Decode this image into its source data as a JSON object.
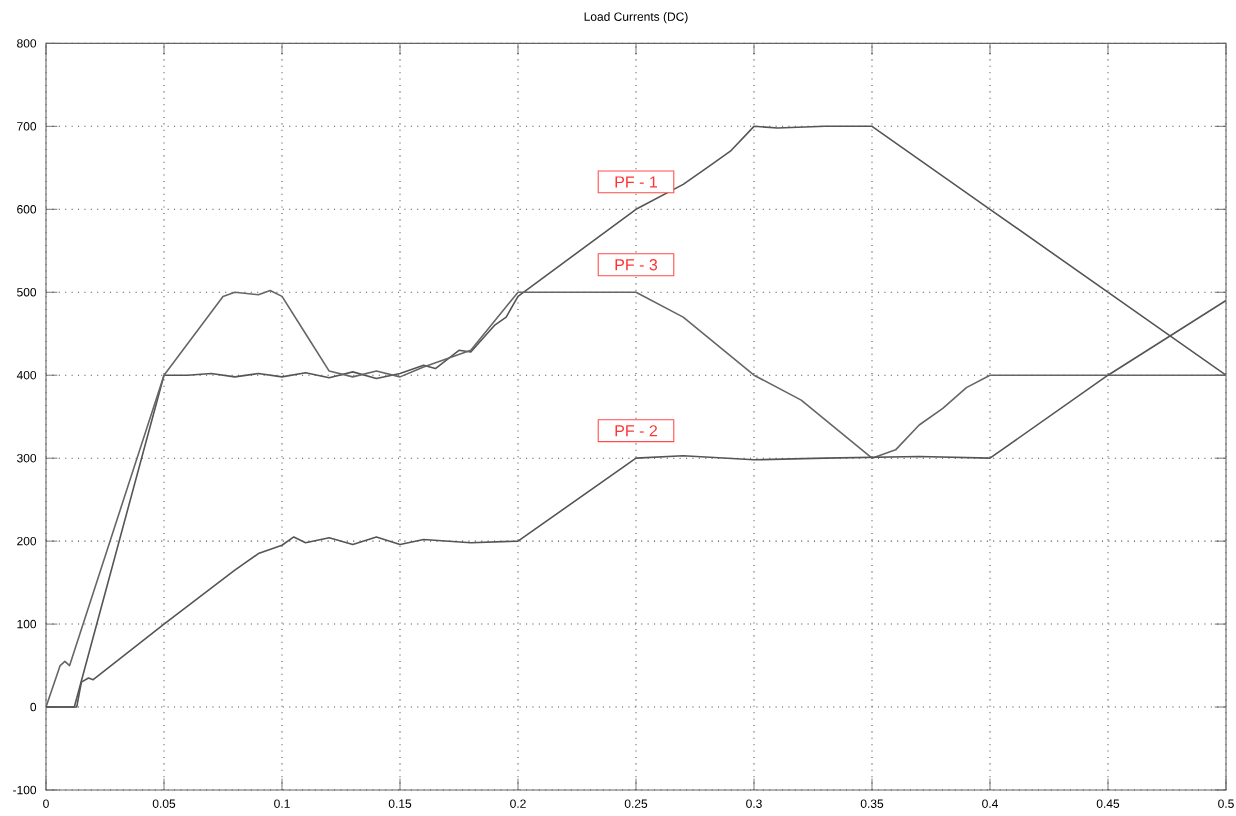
{
  "chart_data": {
    "type": "line",
    "title": "Load Currents (DC)",
    "xlim": [
      0,
      0.5
    ],
    "ylim": [
      -100,
      800
    ],
    "xticks": [
      0,
      0.05,
      0.1,
      0.15,
      0.2,
      0.25,
      0.3,
      0.35,
      0.4,
      0.45,
      0.5
    ],
    "yticks": [
      -100,
      0,
      100,
      200,
      300,
      400,
      500,
      600,
      700,
      800
    ],
    "grid": true,
    "marker": "none",
    "line_style": "solid",
    "series": [
      {
        "name": "PF - 1",
        "color": "#555555",
        "x": [
          0,
          0.012,
          0.05,
          0.06,
          0.07,
          0.08,
          0.09,
          0.1,
          0.11,
          0.12,
          0.13,
          0.14,
          0.15,
          0.16,
          0.165,
          0.175,
          0.18,
          0.19,
          0.195,
          0.2,
          0.25,
          0.27,
          0.28,
          0.29,
          0.3,
          0.31,
          0.33,
          0.35,
          0.36,
          0.38,
          0.4,
          0.45,
          0.5
        ],
        "values": [
          0,
          0,
          400,
          400,
          402,
          398,
          402,
          398,
          403,
          397,
          404,
          396,
          402,
          412,
          408,
          430,
          428,
          460,
          470,
          495,
          600,
          630,
          650,
          670,
          700,
          698,
          700,
          700,
          680,
          640,
          600,
          500,
          400
        ]
      },
      {
        "name": "PF - 3",
        "color": "#666666",
        "x": [
          0,
          0.006,
          0.008,
          0.01,
          0.05,
          0.075,
          0.08,
          0.09,
          0.095,
          0.1,
          0.11,
          0.12,
          0.13,
          0.14,
          0.15,
          0.16,
          0.18,
          0.2,
          0.22,
          0.25,
          0.27,
          0.3,
          0.32,
          0.35,
          0.36,
          0.37,
          0.38,
          0.39,
          0.4,
          0.45,
          0.5
        ],
        "values": [
          0,
          50,
          55,
          50,
          400,
          495,
          500,
          497,
          502,
          495,
          450,
          405,
          398,
          405,
          398,
          410,
          430,
          500,
          500,
          500,
          470,
          400,
          370,
          300,
          310,
          340,
          360,
          385,
          400,
          400,
          400
        ]
      },
      {
        "name": "PF - 2",
        "color": "#555555",
        "x": [
          0,
          0.013,
          0.015,
          0.018,
          0.02,
          0.05,
          0.08,
          0.09,
          0.1,
          0.105,
          0.11,
          0.12,
          0.13,
          0.14,
          0.15,
          0.16,
          0.18,
          0.2,
          0.25,
          0.27,
          0.3,
          0.33,
          0.37,
          0.4,
          0.45,
          0.5
        ],
        "values": [
          0,
          0,
          30,
          35,
          33,
          100,
          165,
          185,
          195,
          205,
          198,
          204,
          196,
          205,
          196,
          202,
          198,
          200,
          300,
          303,
          298,
          300,
          302,
          300,
          400,
          490
        ]
      }
    ]
  }
}
